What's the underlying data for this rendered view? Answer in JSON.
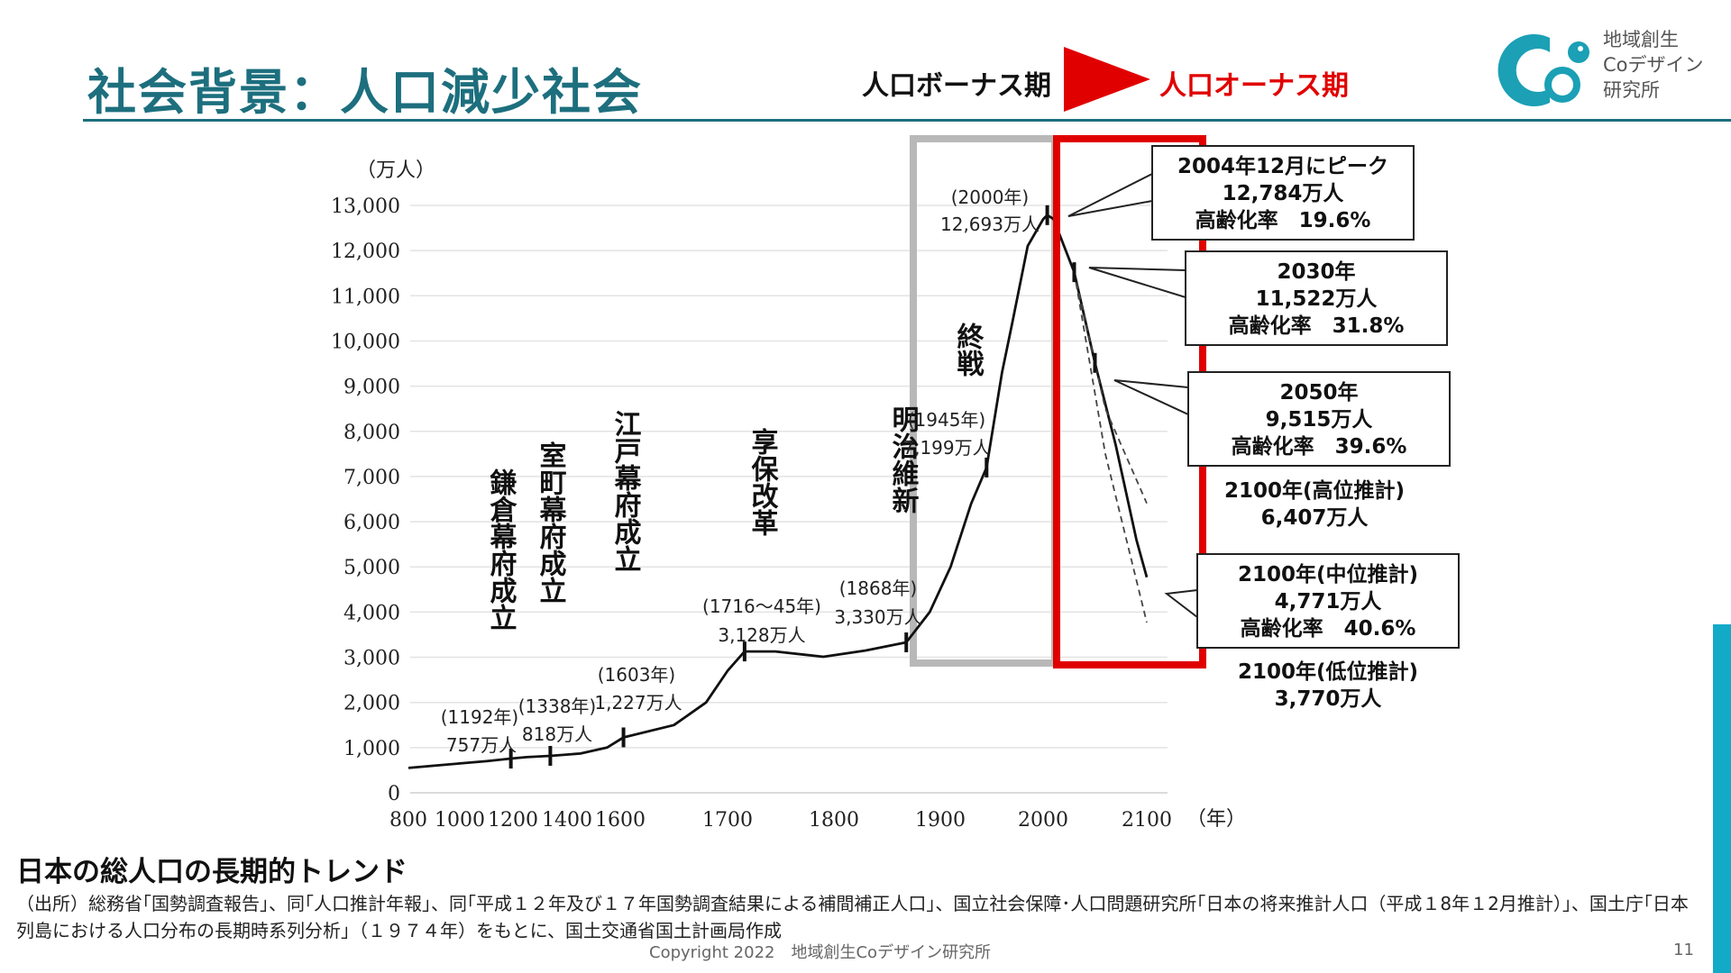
{
  "title": "社会背景：人口減少社会",
  "phases": {
    "bonus": "人口ボーナス期",
    "onus": "人口オーナス期"
  },
  "logo": {
    "line1": "地域創生",
    "line2": "Coデザイン",
    "line3": "研究所"
  },
  "colors": {
    "title": "#1d6f7e",
    "onus": "#e00000",
    "accent_bar": "#13aac8",
    "bonus_box": "#b8b8b8"
  },
  "chart_data": {
    "type": "line",
    "ylabel": "（万人）",
    "xunit": "（年）",
    "ylim": [
      0,
      13000
    ],
    "xlim": [
      800,
      2100
    ],
    "yticks": [
      "0",
      "1,000",
      "2,000",
      "3,000",
      "4,000",
      "5,000",
      "6,000",
      "7,000",
      "8,000",
      "9,000",
      "10,000",
      "11,000",
      "12,000",
      "13,000"
    ],
    "xticks": [
      "800",
      "1000",
      "1200",
      "1400",
      "1600",
      "1700",
      "1800",
      "1900",
      "2000",
      "2100"
    ],
    "grid": true,
    "series": [
      {
        "points": [
          [
            800,
            551
          ],
          [
            900,
            600
          ],
          [
            1000,
            650
          ],
          [
            1100,
            700
          ],
          [
            1192,
            757
          ],
          [
            1250,
            790
          ],
          [
            1338,
            818
          ],
          [
            1450,
            870
          ],
          [
            1550,
            1000
          ],
          [
            1603,
            1227
          ],
          [
            1650,
            1500
          ],
          [
            1680,
            2000
          ],
          [
            1700,
            2700
          ],
          [
            1716,
            3128
          ],
          [
            1745,
            3128
          ],
          [
            1790,
            3010
          ],
          [
            1830,
            3150
          ],
          [
            1868,
            3330
          ],
          [
            1890,
            4000
          ],
          [
            1910,
            5000
          ],
          [
            1930,
            6400
          ],
          [
            1945,
            7199
          ],
          [
            1960,
            9300
          ],
          [
            1970,
            10400
          ],
          [
            1985,
            12100
          ],
          [
            2000,
            12693
          ],
          [
            2004,
            12784
          ],
          [
            2010,
            12700
          ],
          [
            2030,
            11522
          ],
          [
            2050,
            9515
          ],
          [
            2070,
            7700
          ],
          [
            2090,
            5600
          ],
          [
            2100,
            4771
          ]
        ]
      },
      {
        "points": [
          [
            2030,
            11522
          ],
          [
            2060,
            8500
          ],
          [
            2100,
            6407
          ]
        ]
      },
      {
        "points": [
          [
            2030,
            11522
          ],
          [
            2060,
            7500
          ],
          [
            2100,
            3770
          ]
        ]
      }
    ],
    "events": [
      {
        "label": "鎌倉幕府成立",
        "year_label": "(1192年)",
        "value_label": "757万人"
      },
      {
        "label": "室町幕府成立",
        "year_label": "(1338年)",
        "value_label": "818万人"
      },
      {
        "label": "江戸幕府成立",
        "year_label": "(1603年)",
        "value_label": "1,227万人"
      },
      {
        "label": "享保改革",
        "year_label": "(1716～45年)",
        "value_label": "3,128万人"
      },
      {
        "label": "明治維新",
        "year_label": "(1868年)",
        "value_label": "3,330万人"
      },
      {
        "label": "終戦",
        "year_label": "(1945年)",
        "value_label": "7,199万人"
      },
      {
        "label": "",
        "year_label": "(2000年)",
        "value_label": "12,693万人"
      }
    ],
    "callouts": [
      {
        "line1": "2004年12月にピーク",
        "line2": "12,784万人",
        "line3": "高齢化率　19.6%"
      },
      {
        "line1": "2030年",
        "line2": "11,522万人",
        "line3": "高齢化率　31.8%"
      },
      {
        "line1": "2050年",
        "line2": "9,515万人",
        "line3": "高齢化率　39.6%"
      },
      {
        "line1": "2100年(高位推計)",
        "line2": "6,407万人",
        "line3": ""
      },
      {
        "line1": "2100年(中位推計)",
        "line2": "4,771万人",
        "line3": "高齢化率　40.6%"
      },
      {
        "line1": "2100年(低位推計)",
        "line2": "3,770万人",
        "line3": ""
      }
    ]
  },
  "chart_subtitle": "日本の総人口の長期的トレンド",
  "source_note": "（出所）総務省｢国勢調査報告｣、同｢人口推計年報｣、同｢平成１２年及び１７年国勢調査結果による補間補正人口｣、国立社会保障･人口問題研究所｢日本の将来推計人口（平成１8年１2月推計）｣、国土庁｢日本列島における人口分布の長期時系列分析｣（１９７４年）をもとに、国土交通省国土計画局作成",
  "copyright": "Copyright 2022　地域創生Coデザイン研究所",
  "page_number": "11"
}
